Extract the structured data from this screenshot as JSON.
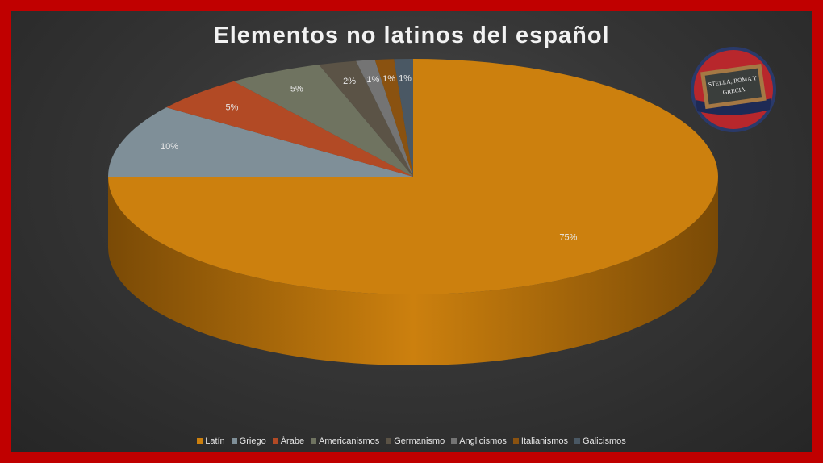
{
  "title": "Elementos no latinos del español",
  "logo_text": "STELLA, ROMA Y GRECIA",
  "chart_data": {
    "type": "pie",
    "style": "3d",
    "title": "Elementos no latinos del español",
    "categories": [
      "Latín",
      "Griego",
      "Árabe",
      "Americanismos",
      "Germanismo",
      "Anglicismos",
      "Italianismos",
      "Galicismos"
    ],
    "values": [
      75,
      10,
      5,
      5,
      2,
      1,
      1,
      1
    ],
    "labels": [
      "75%",
      "10%",
      "5%",
      "5%",
      "2%",
      "1%",
      "1%",
      "1%"
    ],
    "colors": [
      "#cc800e",
      "#7f8f98",
      "#b24a25",
      "#6f7360",
      "#5b5346",
      "#747474",
      "#8a5210",
      "#4a5864"
    ],
    "side_colors": [
      "#7a4a06",
      "#4c565c",
      "#6b2c16",
      "#43453a",
      "#37322a",
      "#464646",
      "#533108",
      "#2c353c"
    ],
    "legend_position": "bottom"
  }
}
